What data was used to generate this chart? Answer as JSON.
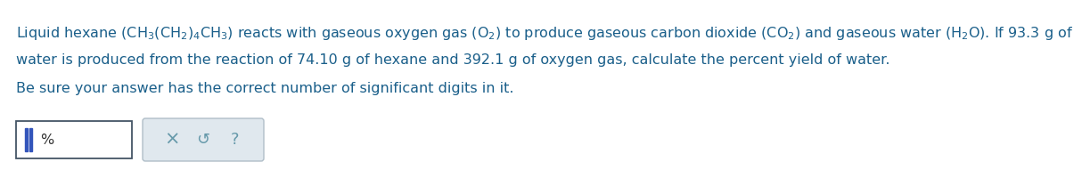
{
  "background_color": "#ffffff",
  "text_color": "#1a5f8a",
  "line1": "Liquid hexane $\\left(\\mathrm{CH_3(CH_2)_4CH_3}\\right)$ reacts with gaseous oxygen gas $\\left(\\mathrm{O_2}\\right)$ to produce gaseous carbon dioxide $\\left(\\mathrm{CO_2}\\right)$ and gaseous water $\\left(\\mathrm{H_2O}\\right)$. If 93.3 g of",
  "line2": "water is produced from the reaction of 74.10 g of hexane and 392.1 g of oxygen gas, calculate the percent yield of water.",
  "line3": "Be sure your answer has the correct number of significant digits in it.",
  "font_size": 11.5,
  "btn_font_size": 13,
  "input_border": "#445566",
  "cursor_color": "#3355bb",
  "btn_bg": "#e0e8ee",
  "btn_border": "#b0bec8",
  "btn_text_color": "#6699aa"
}
